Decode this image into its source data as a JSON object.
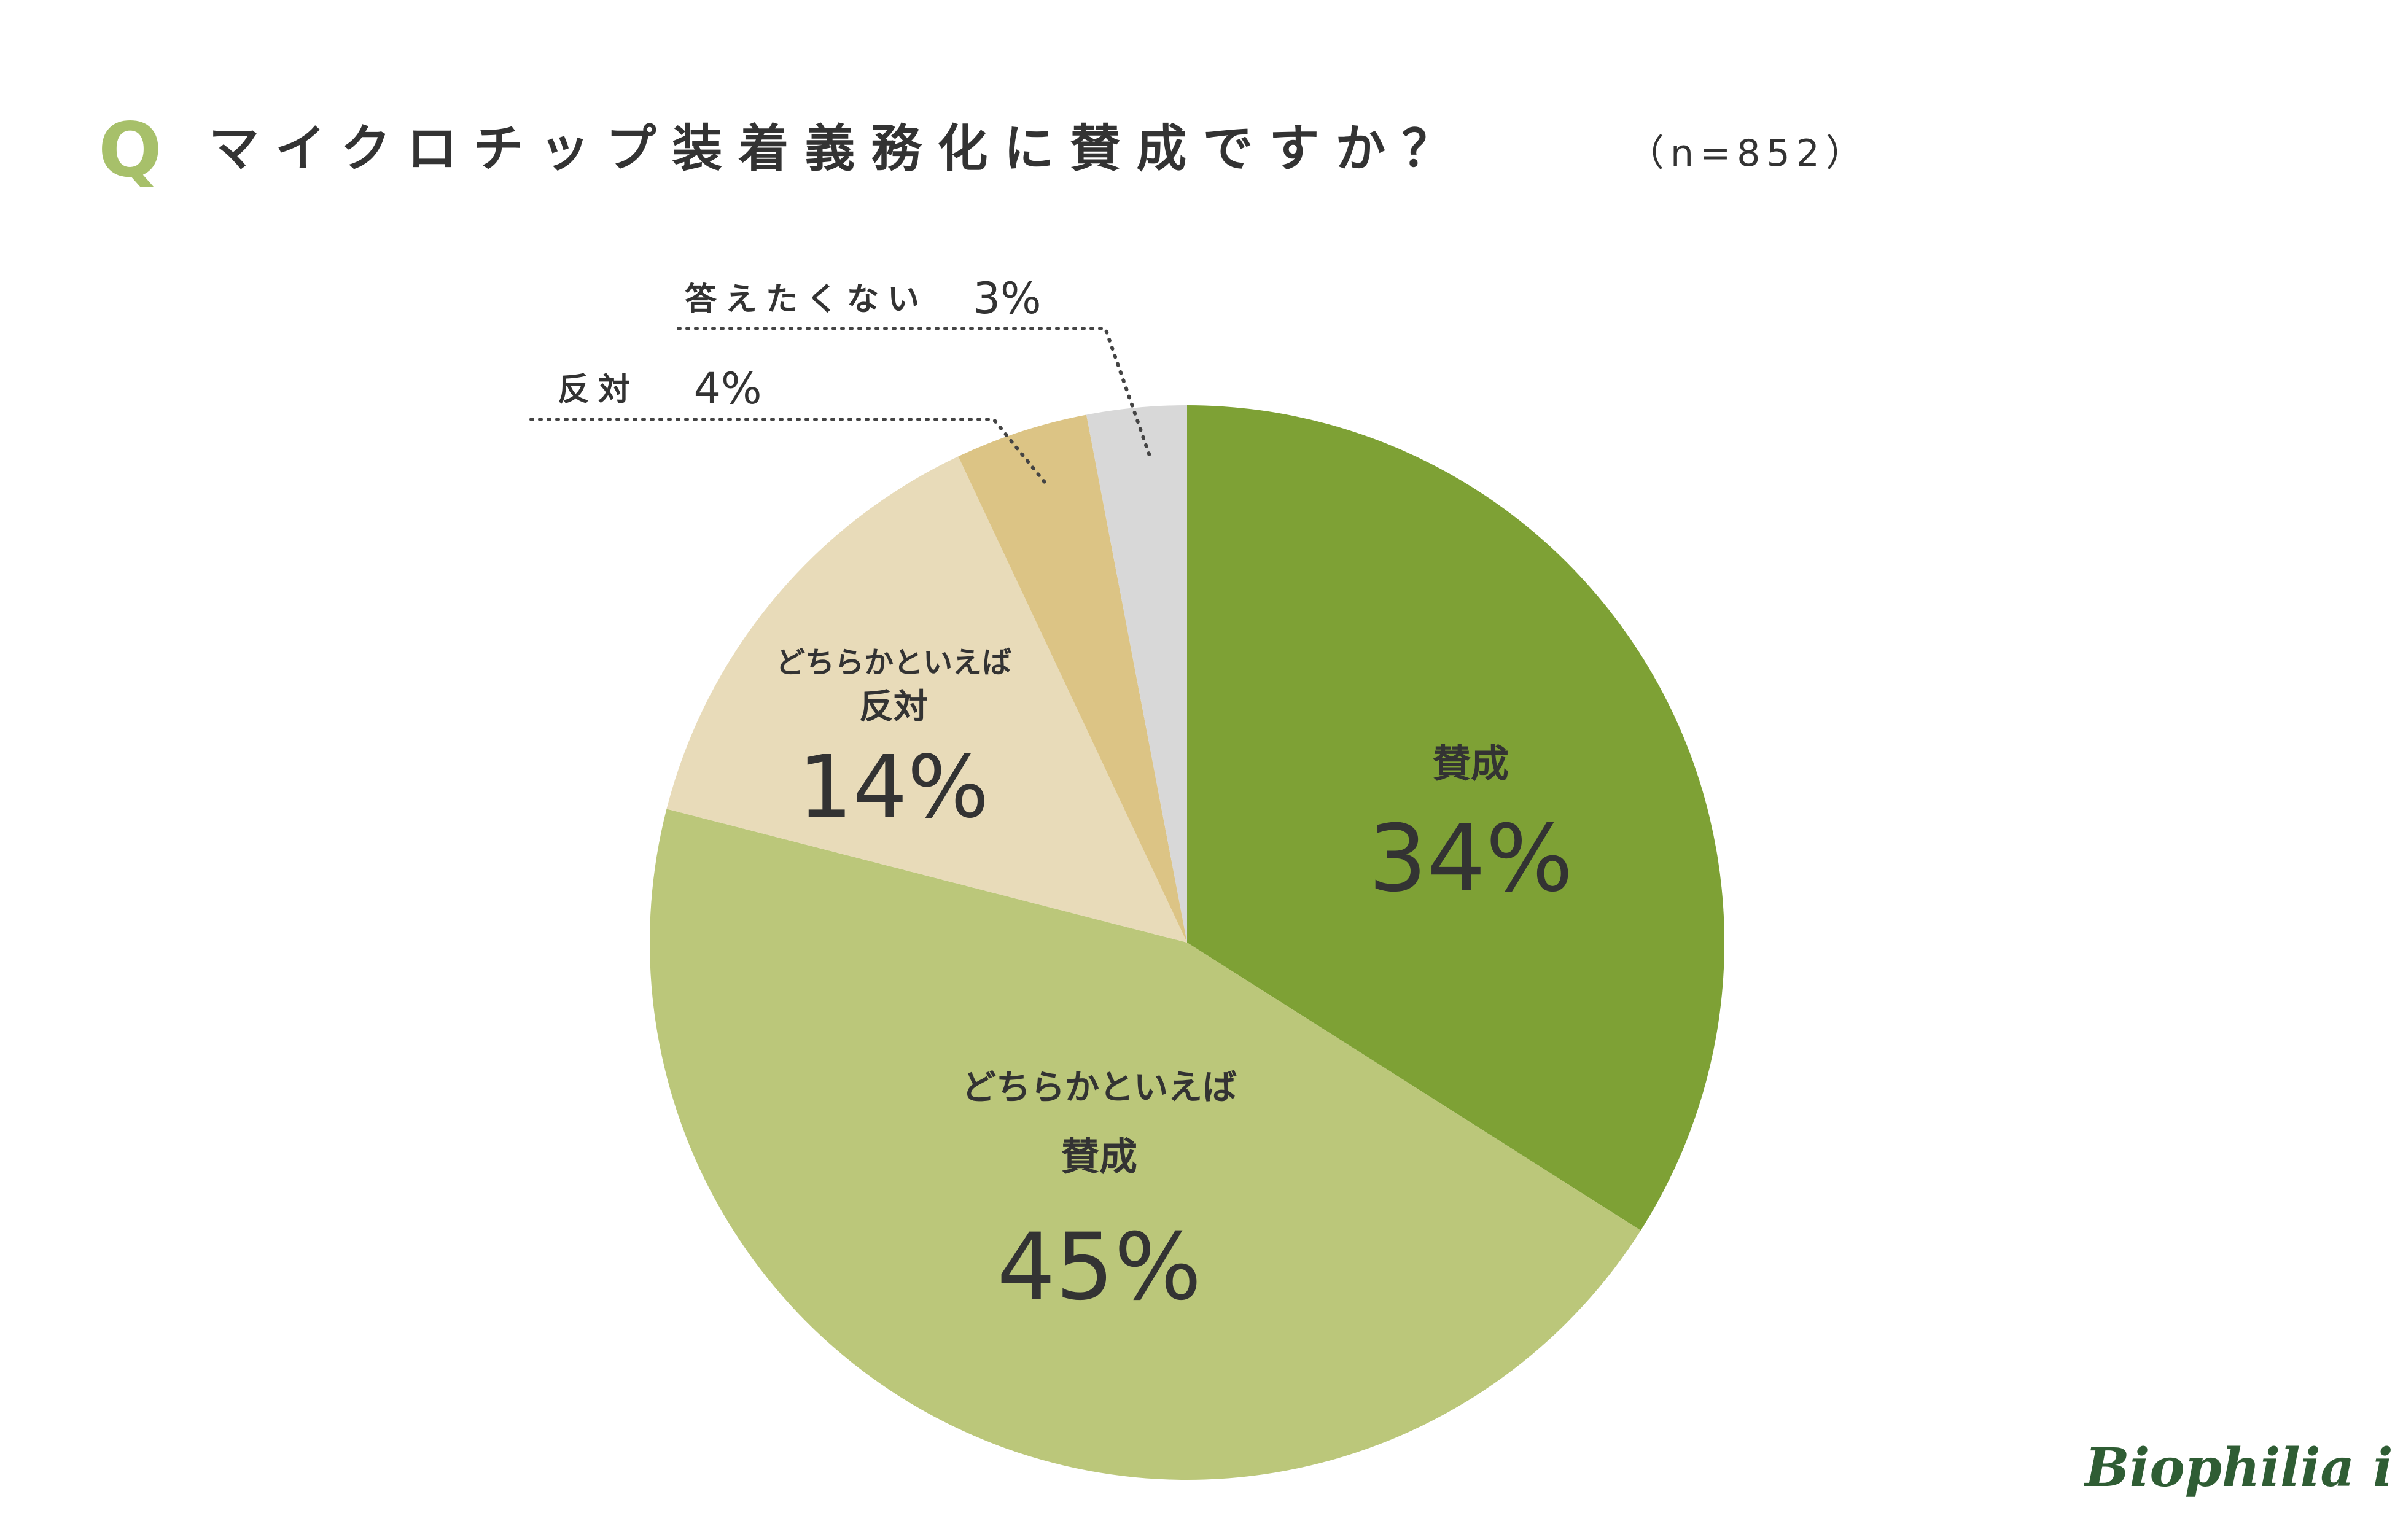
{
  "header": {
    "q_mark": "Q",
    "title": "マイクロチップ装着義務化に賛成ですか？",
    "sample": "（n=852）"
  },
  "logo": "Biophilia inc.",
  "colors": {
    "q_mark": "#a7c06a",
    "text": "#333333",
    "leader": "#444444"
  },
  "chart_data": {
    "type": "pie",
    "title": "マイクロチップ装着義務化に賛成ですか？",
    "sample_size": 852,
    "start": "12 o'clock",
    "direction": "clockwise",
    "slices": [
      {
        "label": "賛成",
        "label_lines": [
          "賛成"
        ],
        "value": 34,
        "display": "34%",
        "color": "#7ea135"
      },
      {
        "label": "どちらかといえば賛成",
        "label_lines": [
          "どちらかといえば",
          "賛成"
        ],
        "value": 45,
        "display": "45%",
        "color": "#bbc77a"
      },
      {
        "label": "どちらかといえば反対",
        "label_lines": [
          "どちらかといえば",
          "反対"
        ],
        "value": 14,
        "display": "14%",
        "color": "#e8dbb9"
      },
      {
        "label": "反対",
        "label_lines": [
          "反対"
        ],
        "value": 4,
        "display": "4%",
        "color": "#dcc485"
      },
      {
        "label": "答えたくない",
        "label_lines": [
          "答えたくない"
        ],
        "value": 3,
        "display": "3%",
        "color": "#d8d8d8"
      }
    ]
  }
}
